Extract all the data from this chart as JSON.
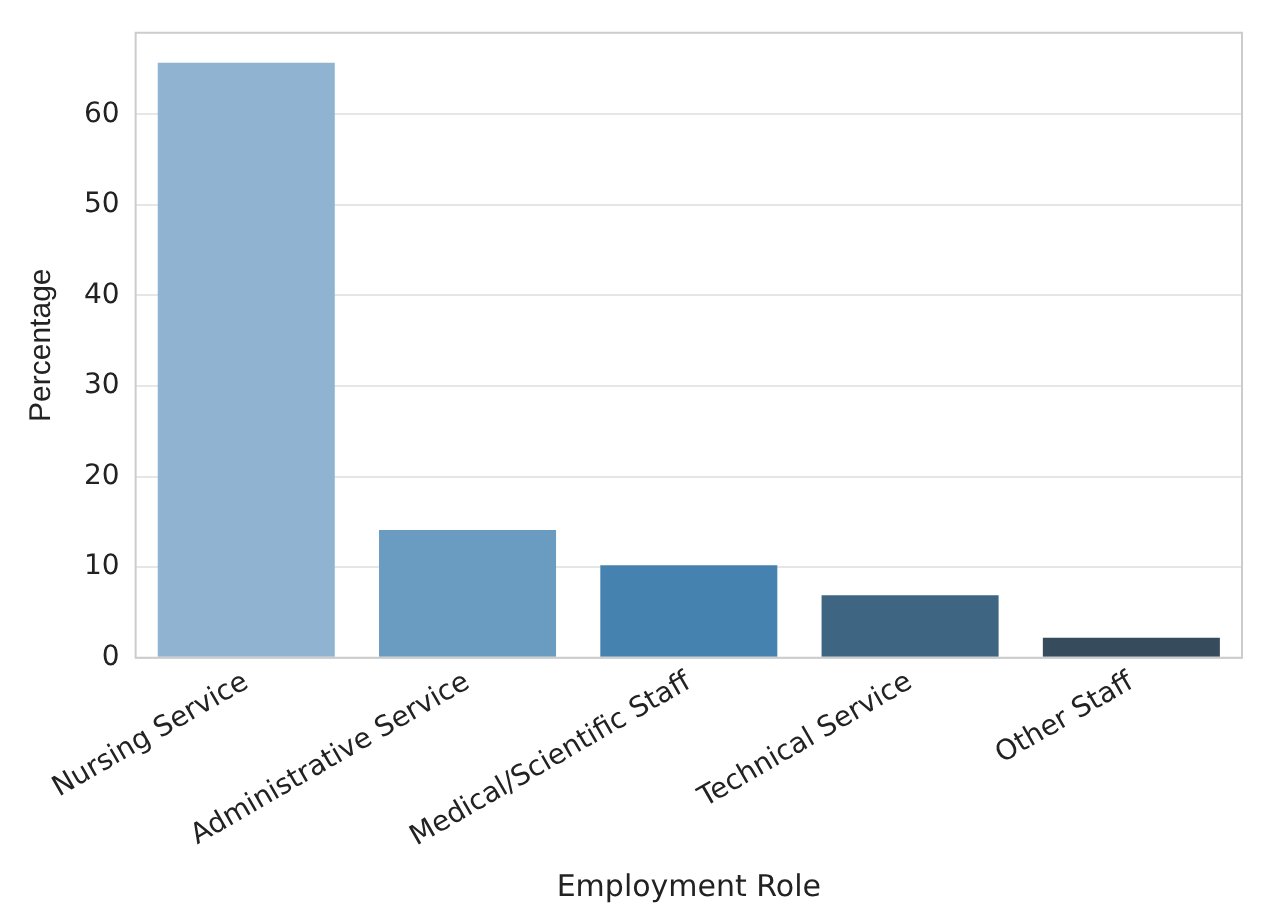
{
  "chart_data": {
    "type": "bar",
    "xlabel": "Employment Role",
    "ylabel": "Percentage",
    "categories": [
      "Nursing Service",
      "Administrative Service",
      "Medical/Scientific Staff",
      "Technical Service",
      "Other Staff"
    ],
    "values": [
      65.7,
      14.1,
      10.2,
      6.9,
      2.2
    ],
    "colors": [
      "#8fb3d0",
      "#6a9bc0",
      "#4682b0",
      "#3e6683",
      "#364b5c"
    ],
    "ylim": [
      0,
      69
    ],
    "yticks": [
      0,
      10,
      20,
      30,
      40,
      50,
      60
    ],
    "grid": "y",
    "legend": false
  }
}
